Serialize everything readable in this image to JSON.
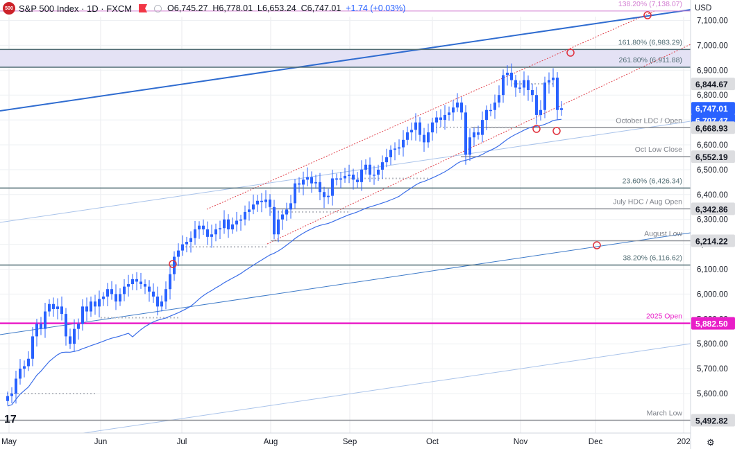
{
  "header": {
    "logo_text": "500",
    "symbol": "S&P 500 Index · 1D · FXCM",
    "ohlc_open": "O6,745.27",
    "ohlc_high": "H6,778.01",
    "ohlc_low": "L6,653.24",
    "ohlc_close": "C6,747.01",
    "change": "+1.74 (+0.03%)",
    "currency": "USD"
  },
  "colors": {
    "up": "#2962ff",
    "ma": "#3b6ee8",
    "channel": "#e0404a",
    "level_line": "#4f6b72",
    "gray_level": "#8c8f96",
    "magenta": "#e91ec8",
    "fib_pink": "#d37fd2",
    "zone_fill": "#e4e2f5",
    "trend_main": "#2f6cd0",
    "trend_light": "#a9c3ea"
  },
  "chart_data": {
    "type": "candlestick",
    "symbol": "S&P 500 Index",
    "timeframe": "1D",
    "ylim": [
      5440,
      7220
    ],
    "y_ticks": [
      "7,100.00",
      "7,000.00",
      "6,900.00",
      "6,800.00",
      "6,700.00",
      "6,600.00",
      "6,500.00",
      "6,400.00",
      "6,300.00",
      "6,200.00",
      "6,100.00",
      "6,000.00",
      "5,900.00",
      "5,800.00",
      "5,700.00",
      "5,600.00"
    ],
    "x_ticks": [
      {
        "label": "May",
        "date": "2025-05-01"
      },
      {
        "label": "Jun",
        "date": "2025-06-02"
      },
      {
        "label": "Jul",
        "date": "2025-07-01"
      },
      {
        "label": "Aug",
        "date": "2025-08-01"
      },
      {
        "label": "Sep",
        "date": "2025-09-02"
      },
      {
        "label": "Oct",
        "date": "2025-10-01"
      },
      {
        "label": "Nov",
        "date": "2025-11-03"
      },
      {
        "label": "Dec",
        "date": "2025-12-01"
      },
      {
        "label": "202",
        "date": "2026-01-01"
      }
    ],
    "closes": [
      5590,
      5600,
      5660,
      5700,
      5710,
      5740,
      5830,
      5880,
      5860,
      5930,
      5960,
      5940,
      5950,
      5920,
      5830,
      5800,
      5860,
      5880,
      5950,
      5930,
      5970,
      5950,
      5980,
      5990,
      6020,
      6000,
      5970,
      6000,
      6030,
      6040,
      6060,
      6050,
      6040,
      6030,
      6010,
      5990,
      5950,
      5970,
      6020,
      6080,
      6150,
      6175,
      6200,
      6210,
      6225,
      6260,
      6275,
      6260,
      6230,
      6240,
      6260,
      6265,
      6300,
      6260,
      6280,
      6295,
      6300,
      6330,
      6340,
      6360,
      6375,
      6370,
      6380,
      6350,
      6240,
      6300,
      6320,
      6340,
      6365,
      6445,
      6440,
      6460,
      6470,
      6445,
      6450,
      6410,
      6390,
      6395,
      6465,
      6460,
      6465,
      6475,
      6480,
      6460,
      6450,
      6500,
      6520,
      6480,
      6480,
      6500,
      6530,
      6550,
      6580,
      6585,
      6590,
      6620,
      6650,
      6660,
      6690,
      6640,
      6610,
      6650,
      6690,
      6710,
      6700,
      6720,
      6730,
      6750,
      6770,
      6730,
      6560,
      6630,
      6650,
      6640,
      6700,
      6740,
      6740,
      6770,
      6800,
      6880,
      6890,
      6860,
      6830,
      6830,
      6860,
      6820,
      6800,
      6720,
      6740,
      6850,
      6860,
      6870,
      6740,
      6747
    ],
    "ma_label": "",
    "levels": [
      {
        "label": "138.20% (7,138.07)",
        "value": 7138.07
      },
      {
        "label": "161.80% (6,983.29)",
        "value": 6983.29
      },
      {
        "label": "261.80% (6,911.88)",
        "value": 6911.88
      },
      {
        "label": "October LDC / Open",
        "value": 6668.93
      },
      {
        "label": "Oct Low Close",
        "value": 6552.19
      },
      {
        "label": "23.60% (6,426.34)",
        "value": 6426.34
      },
      {
        "label": "July HDC / Aug Open",
        "value": 6342.86
      },
      {
        "label": "August Low",
        "value": 6214.22
      },
      {
        "label": "38.20% (6,116.62)",
        "value": 6116.62
      },
      {
        "label": "2025 Open",
        "value": 5882.5
      },
      {
        "label": "March Low",
        "value": 5492.82
      }
    ],
    "price_tags": [
      {
        "text": "6,844.67",
        "value": 6844.67,
        "style": "gray"
      },
      {
        "text": "6,747.01",
        "value": 6747.01,
        "style": "blue"
      },
      {
        "text": "6,707.47",
        "value": 6707.47,
        "style": "blue"
      },
      {
        "text": "6,668.93",
        "value": 6668.93,
        "style": "gray"
      },
      {
        "text": "6,552.19",
        "value": 6552.19,
        "style": "gray"
      },
      {
        "text": "6,342.86",
        "value": 6342.86,
        "style": "gray"
      },
      {
        "text": "6,214.22",
        "value": 6214.22,
        "style": "gray"
      },
      {
        "text": "5,882.50",
        "value": 5882.5,
        "style": "magenta"
      },
      {
        "text": "5,492.82",
        "value": 5492.82,
        "style": "gray"
      }
    ]
  }
}
